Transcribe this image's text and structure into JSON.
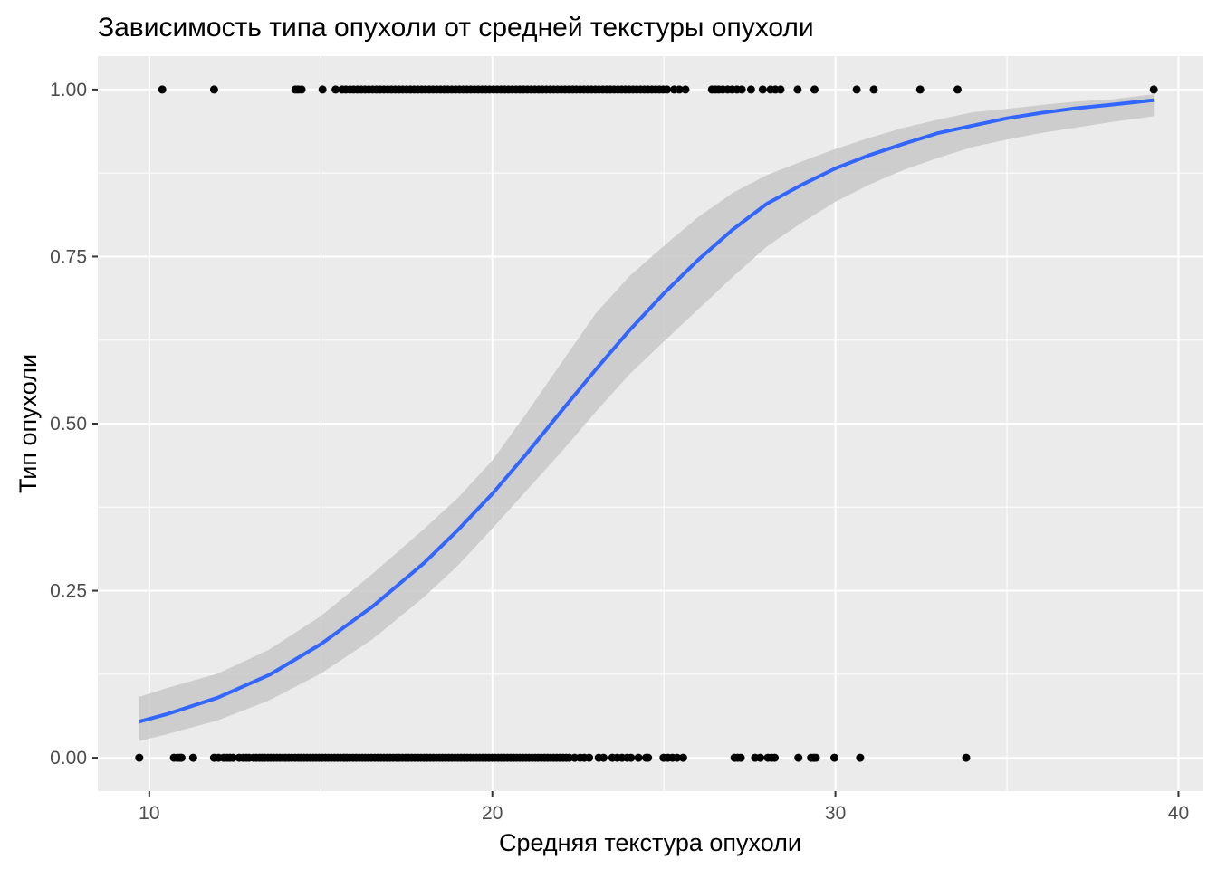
{
  "chart_data": {
    "type": "scatter",
    "title": "Зависимость типа опухоли от средней текстуры опухоли",
    "xlabel": "Средняя текстура опухоли",
    "ylabel": "Тип опухоли",
    "xlim": [
      8.5,
      40.7
    ],
    "ylim": [
      -0.05,
      1.05
    ],
    "x_ticks": [
      10,
      20,
      30,
      40
    ],
    "x_tick_labels": [
      "10",
      "20",
      "30",
      "40"
    ],
    "y_ticks": [
      0,
      0.25,
      0.5,
      0.75,
      1
    ],
    "y_tick_labels": [
      "0.00",
      "0.25",
      "0.50",
      "0.75",
      "1.00"
    ],
    "grid": true,
    "legend": "none",
    "colors": {
      "panel": "#ebebeb",
      "grid": "#ffffff",
      "points": "#000000",
      "fit_line": "#3366ff",
      "ribbon": "#c8c8c8"
    },
    "series": [
      {
        "type": "scatter",
        "y": 0,
        "x": [
          9.71,
          10.72,
          10.82,
          10.89,
          10.94,
          11.28,
          11.89,
          12.02,
          12.17,
          12.27,
          12.35,
          12.44,
          12.62,
          12.74,
          12.83,
          12.91,
          13.04,
          13.12,
          13.21,
          13.29,
          13.37,
          13.46,
          13.54,
          13.63,
          13.72,
          13.81,
          13.9,
          13.98,
          14.07,
          14.16,
          14.25,
          14.34,
          14.42,
          14.51,
          14.6,
          14.69,
          14.78,
          14.86,
          14.95,
          15.04,
          15.13,
          15.22,
          15.31,
          15.4,
          15.49,
          15.58,
          15.67,
          15.76,
          15.85,
          15.94,
          16.03,
          16.12,
          16.21,
          16.3,
          16.39,
          16.48,
          16.57,
          16.66,
          16.75,
          16.84,
          16.93,
          17.02,
          17.11,
          17.2,
          17.29,
          17.38,
          17.47,
          17.56,
          17.65,
          17.74,
          17.83,
          17.92,
          18.01,
          18.1,
          18.19,
          18.28,
          18.37,
          18.46,
          18.55,
          18.64,
          18.73,
          18.82,
          18.91,
          19.0,
          19.09,
          19.18,
          19.27,
          19.36,
          19.45,
          19.54,
          19.63,
          19.72,
          19.81,
          19.9,
          19.99,
          20.08,
          20.17,
          20.26,
          20.35,
          20.44,
          20.53,
          20.62,
          20.71,
          20.8,
          20.89,
          20.98,
          21.07,
          21.16,
          21.25,
          21.34,
          21.43,
          21.52,
          21.61,
          21.7,
          21.79,
          21.88,
          21.97,
          22.06,
          22.15,
          22.24,
          22.4,
          22.56,
          22.68,
          22.82,
          23.1,
          23.24,
          23.5,
          23.64,
          23.78,
          23.93,
          24.04,
          24.26,
          24.48,
          24.54,
          24.99,
          25.12,
          25.25,
          25.38,
          25.56,
          27.06,
          27.15,
          27.24,
          27.66,
          27.81,
          28.03,
          28.14,
          28.23,
          28.92,
          29.29,
          29.37,
          29.43,
          29.97,
          30.72,
          33.81
        ]
      },
      {
        "type": "scatter",
        "y": 1,
        "x": [
          10.38,
          11.89,
          14.26,
          14.34,
          14.44,
          15.05,
          15.43,
          15.62,
          15.73,
          15.85,
          15.96,
          16.07,
          16.18,
          16.29,
          16.4,
          16.51,
          16.62,
          16.73,
          16.84,
          16.95,
          17.06,
          17.17,
          17.28,
          17.39,
          17.5,
          17.61,
          17.72,
          17.83,
          17.94,
          18.05,
          18.16,
          18.27,
          18.38,
          18.49,
          18.6,
          18.71,
          18.82,
          18.93,
          19.04,
          19.15,
          19.26,
          19.37,
          19.48,
          19.59,
          19.7,
          19.81,
          19.92,
          20.03,
          20.14,
          20.25,
          20.36,
          20.47,
          20.58,
          20.69,
          20.8,
          20.91,
          21.02,
          21.13,
          21.24,
          21.35,
          21.46,
          21.57,
          21.68,
          21.79,
          21.9,
          22.01,
          22.12,
          22.23,
          22.34,
          22.45,
          22.56,
          22.67,
          22.78,
          22.89,
          23.0,
          23.11,
          23.22,
          23.33,
          23.44,
          23.55,
          23.66,
          23.77,
          23.88,
          23.99,
          24.1,
          24.21,
          24.32,
          24.43,
          24.54,
          24.65,
          24.76,
          24.87,
          24.98,
          25.09,
          25.3,
          25.45,
          25.63,
          26.4,
          26.5,
          26.6,
          26.72,
          26.86,
          26.99,
          27.13,
          27.27,
          27.54,
          27.88,
          28.11,
          28.25,
          28.4,
          28.9,
          29.39,
          30.62,
          31.12,
          32.47,
          33.56,
          39.28
        ]
      },
      {
        "type": "line",
        "name": "",
        "x": [
          9.71,
          10.5,
          12,
          13.5,
          15,
          16.5,
          18,
          19,
          20,
          21,
          22,
          23,
          24,
          25,
          26,
          27,
          28,
          29,
          30,
          31,
          32,
          33,
          34,
          35,
          36,
          37,
          38,
          39.28
        ],
        "y": [
          0.054,
          0.065,
          0.09,
          0.124,
          0.17,
          0.226,
          0.291,
          0.341,
          0.395,
          0.455,
          0.518,
          0.58,
          0.64,
          0.695,
          0.745,
          0.79,
          0.829,
          0.857,
          0.882,
          0.902,
          0.919,
          0.935,
          0.946,
          0.957,
          0.965,
          0.972,
          0.977,
          0.984
        ],
        "ci_lower": [
          0.025,
          0.035,
          0.056,
          0.086,
          0.126,
          0.177,
          0.24,
          0.288,
          0.343,
          0.4,
          0.457,
          0.517,
          0.574,
          0.623,
          0.671,
          0.719,
          0.765,
          0.8,
          0.832,
          0.858,
          0.88,
          0.898,
          0.914,
          0.925,
          0.935,
          0.943,
          0.951,
          0.96
        ],
        "ci_upper": [
          0.091,
          0.104,
          0.126,
          0.162,
          0.212,
          0.275,
          0.342,
          0.389,
          0.445,
          0.516,
          0.59,
          0.664,
          0.721,
          0.766,
          0.809,
          0.845,
          0.872,
          0.892,
          0.911,
          0.928,
          0.943,
          0.955,
          0.966,
          0.971,
          0.977,
          0.982,
          0.985,
          0.993
        ]
      }
    ]
  }
}
